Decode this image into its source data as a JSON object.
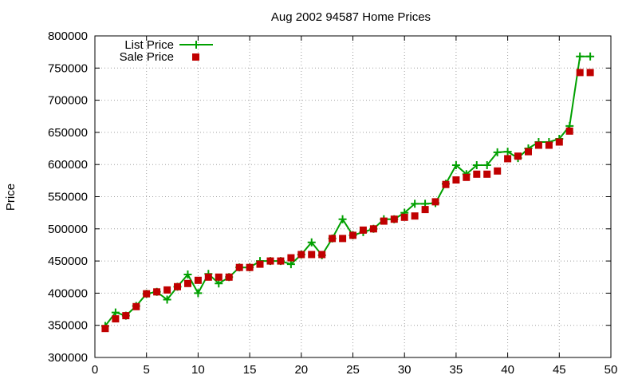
{
  "chart_data": {
    "type": "line",
    "title": "Aug 2002 94587 Home Prices",
    "xlabel": "",
    "ylabel": "Price",
    "xlim": [
      0,
      50
    ],
    "ylim": [
      300000,
      800000
    ],
    "x_ticks": [
      0,
      5,
      10,
      15,
      20,
      25,
      30,
      35,
      40,
      45,
      50
    ],
    "y_ticks": [
      300000,
      350000,
      400000,
      450000,
      500000,
      550000,
      600000,
      650000,
      700000,
      750000,
      800000
    ],
    "x_tick_labels": [
      "0",
      "5",
      "10",
      "15",
      "20",
      "25",
      "30",
      "35",
      "40",
      "45",
      "50"
    ],
    "y_tick_labels": [
      "300000",
      "350000",
      "400000",
      "450000",
      "500000",
      "550000",
      "600000",
      "650000",
      "700000",
      "750000",
      "800000"
    ],
    "grid": true,
    "legend_position": "top-left",
    "x": [
      1,
      2,
      3,
      4,
      5,
      6,
      7,
      8,
      9,
      10,
      11,
      12,
      13,
      14,
      15,
      16,
      17,
      18,
      19,
      20,
      21,
      22,
      23,
      24,
      25,
      26,
      27,
      28,
      29,
      30,
      31,
      32,
      33,
      34,
      35,
      36,
      37,
      38,
      39,
      40,
      41,
      42,
      43,
      44,
      45,
      46,
      47,
      48
    ],
    "series": [
      {
        "name": "List Price",
        "style": "line+cross",
        "color": "#00a000",
        "values": [
          349000,
          370000,
          365000,
          380000,
          399000,
          402000,
          390000,
          410000,
          429000,
          400000,
          430000,
          415000,
          425000,
          440000,
          440000,
          450000,
          450000,
          450000,
          445000,
          460000,
          479000,
          459000,
          485000,
          515000,
          490000,
          495000,
          500000,
          515000,
          515000,
          525000,
          539000,
          539000,
          540000,
          570000,
          599000,
          585000,
          599000,
          599000,
          619000,
          620000,
          610000,
          625000,
          635000,
          635000,
          640000,
          660000,
          768000,
          768000
        ]
      },
      {
        "name": "Sale Price",
        "style": "square-marker",
        "color": "#c00000",
        "values": [
          345000,
          360000,
          365000,
          379000,
          399000,
          402000,
          405000,
          410000,
          415000,
          420000,
          425000,
          425000,
          425000,
          440000,
          440000,
          445000,
          450000,
          450000,
          455000,
          460000,
          460000,
          460000,
          485000,
          485000,
          490000,
          498000,
          500000,
          512000,
          515000,
          518000,
          520000,
          530000,
          542000,
          569000,
          576000,
          580000,
          585000,
          585000,
          590000,
          609000,
          613000,
          620000,
          630000,
          630000,
          635000,
          652000,
          743000,
          743000
        ]
      }
    ]
  }
}
